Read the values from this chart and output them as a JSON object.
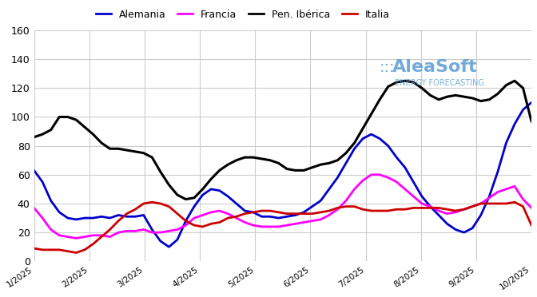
{
  "title": "",
  "xlabel": "",
  "ylabel": "",
  "ylim": [
    0,
    160
  ],
  "yticks": [
    0,
    20,
    40,
    60,
    80,
    100,
    120,
    140,
    160
  ],
  "legend_labels": [
    "Alemania",
    "Francia",
    "Pen. Ibérica",
    "Italia"
  ],
  "legend_colors": [
    "#0000cc",
    "#ff00ff",
    "#000000",
    "#cc0000"
  ],
  "watermark_text": "AleaSoft",
  "watermark_sub": "ENERGY FORECASTING",
  "background_color": "#ffffff",
  "grid_color": "#cccccc",
  "xtick_labels": [
    "1/2025",
    "2/2025",
    "3/2025",
    "4/2025",
    "5/2025",
    "6/2025",
    "7/2025",
    "8/2025",
    "9/2025",
    "10/2025"
  ],
  "x": [
    0,
    1,
    2,
    3,
    4,
    5,
    6,
    7,
    8,
    9,
    10,
    11,
    12,
    13,
    14,
    15,
    16,
    17,
    18,
    19,
    20,
    21,
    22,
    23,
    24,
    25,
    26,
    27,
    28,
    29,
    30,
    31,
    32,
    33,
    34,
    35,
    36,
    37,
    38,
    39,
    40,
    41,
    42,
    43,
    44,
    45,
    46,
    47,
    48,
    49,
    50,
    51,
    52,
    53,
    54,
    55,
    56,
    57,
    58,
    59
  ],
  "alemania": [
    63,
    55,
    42,
    34,
    30,
    29,
    30,
    30,
    31,
    30,
    32,
    31,
    31,
    32,
    22,
    14,
    10,
    15,
    28,
    38,
    46,
    50,
    49,
    45,
    40,
    35,
    34,
    31,
    31,
    30,
    31,
    32,
    34,
    38,
    42,
    50,
    58,
    68,
    78,
    85,
    88,
    85,
    80,
    72,
    65,
    55,
    45,
    38,
    32,
    26,
    22,
    20,
    23,
    32,
    45,
    62,
    82,
    95,
    105,
    110
  ],
  "francia": [
    37,
    30,
    22,
    18,
    17,
    16,
    17,
    18,
    18,
    17,
    20,
    21,
    21,
    22,
    20,
    20,
    21,
    22,
    25,
    30,
    32,
    34,
    35,
    33,
    30,
    27,
    25,
    24,
    24,
    24,
    25,
    26,
    27,
    28,
    29,
    32,
    36,
    42,
    50,
    56,
    60,
    60,
    58,
    55,
    50,
    45,
    40,
    38,
    35,
    33,
    34,
    36,
    38,
    40,
    44,
    48,
    50,
    52,
    43,
    37
  ],
  "pen_iberica": [
    86,
    88,
    91,
    100,
    100,
    98,
    93,
    88,
    82,
    78,
    78,
    77,
    76,
    75,
    72,
    62,
    53,
    46,
    43,
    44,
    50,
    57,
    63,
    67,
    70,
    72,
    72,
    71,
    70,
    68,
    64,
    63,
    63,
    65,
    67,
    68,
    70,
    75,
    82,
    92,
    102,
    112,
    121,
    124,
    125,
    124,
    120,
    115,
    112,
    114,
    115,
    114,
    113,
    111,
    112,
    116,
    122,
    125,
    120,
    97
  ],
  "italia": [
    9,
    8,
    8,
    8,
    7,
    6,
    8,
    12,
    17,
    22,
    28,
    33,
    36,
    40,
    41,
    40,
    38,
    33,
    28,
    25,
    24,
    26,
    27,
    30,
    31,
    33,
    34,
    35,
    35,
    34,
    33,
    33,
    33,
    33,
    34,
    35,
    37,
    38,
    38,
    36,
    35,
    35,
    35,
    36,
    36,
    37,
    37,
    37,
    37,
    36,
    35,
    36,
    38,
    40,
    40,
    40,
    40,
    41,
    38,
    25
  ]
}
